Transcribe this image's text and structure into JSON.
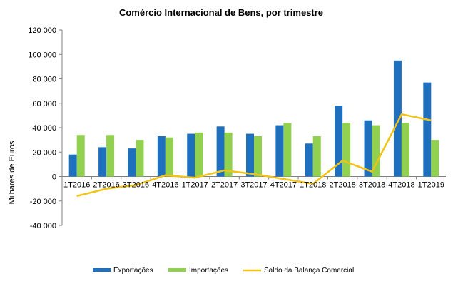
{
  "chart_data": {
    "type": "bar",
    "title": "Comércio Internacional de Bens, por trimestre",
    "ylabel": "Milhares de Euros",
    "xlabel": "",
    "ylim": [
      -40000,
      120000
    ],
    "yticks": [
      -40000,
      -20000,
      0,
      20000,
      40000,
      60000,
      80000,
      100000,
      120000
    ],
    "ytick_labels": [
      "-40 000",
      "-20 000",
      "0",
      "20 000",
      "40 000",
      "60 000",
      "80 000",
      "100 000",
      "120 000"
    ],
    "categories": [
      "1T2016",
      "2T2016",
      "3T2016",
      "4T2016",
      "1T2017",
      "2T2017",
      "3T2017",
      "4T2017",
      "1T2018",
      "2T2018",
      "3T2018",
      "4T2018",
      "1T2019"
    ],
    "series": [
      {
        "name": "Exportações",
        "type": "bar",
        "color": "#1f6fbf",
        "values": [
          18000,
          24000,
          23000,
          33000,
          35000,
          41000,
          35000,
          42000,
          27000,
          58000,
          46000,
          95000,
          77000
        ]
      },
      {
        "name": "Importações",
        "type": "bar",
        "color": "#92d050",
        "values": [
          34000,
          34000,
          30000,
          32000,
          36000,
          36000,
          33000,
          44000,
          33000,
          44000,
          42000,
          44000,
          30000
        ]
      },
      {
        "name": "Saldo da Balança Comercial",
        "type": "line",
        "color": "#f2c314",
        "values": [
          -16000,
          -10000,
          -7000,
          1000,
          -1000,
          5000,
          2000,
          -2000,
          -6000,
          13000,
          4000,
          51000,
          46000
        ]
      }
    ],
    "grid": false,
    "legend_position": "bottom"
  }
}
